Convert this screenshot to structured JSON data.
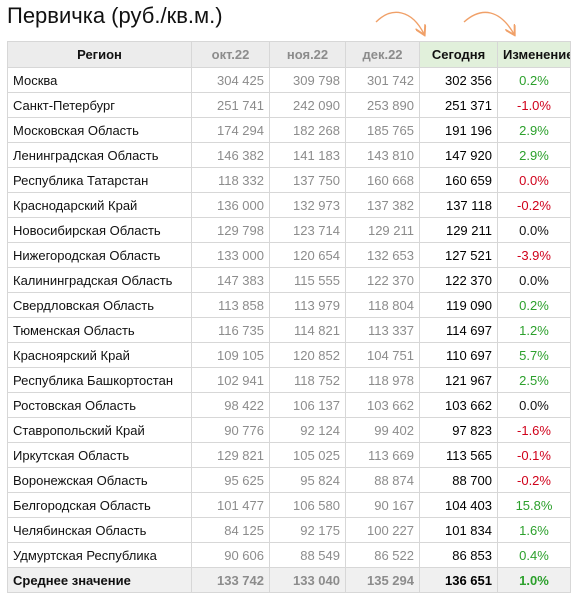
{
  "title": "Первичка (руб./кв.м.)",
  "colors": {
    "positive": "#2ca02c",
    "negative": "#d0021b",
    "neutral": "#111111",
    "header_bg": "#ececec",
    "today_header_bg": "#e1f0db",
    "arrow": "#f0a068"
  },
  "header": {
    "region": "Регион",
    "oct": "окт.22",
    "nov": "ноя.22",
    "dec": "дек.22",
    "today": "Сегодня",
    "change": "Изменение"
  },
  "rows": [
    {
      "region": "Москва",
      "oct": "304 425",
      "nov": "309 798",
      "dec": "301 742",
      "today": "302 356",
      "change": "0.2%",
      "sign": "pos"
    },
    {
      "region": "Санкт-Петербург",
      "oct": "251 741",
      "nov": "242 090",
      "dec": "253 890",
      "today": "251 371",
      "change": "-1.0%",
      "sign": "neg"
    },
    {
      "region": "Московская Область",
      "oct": "174 294",
      "nov": "182 268",
      "dec": "185 765",
      "today": "191 196",
      "change": "2.9%",
      "sign": "pos"
    },
    {
      "region": "Ленинградская Область",
      "oct": "146 382",
      "nov": "141 183",
      "dec": "143 810",
      "today": "147 920",
      "change": "2.9%",
      "sign": "pos"
    },
    {
      "region": "Республика Татарстан",
      "oct": "118 332",
      "nov": "137 750",
      "dec": "160 668",
      "today": "160 659",
      "change": "0.0%",
      "sign": "neg"
    },
    {
      "region": "Краснодарский Край",
      "oct": "136 000",
      "nov": "132 973",
      "dec": "137 382",
      "today": "137 118",
      "change": "-0.2%",
      "sign": "neg"
    },
    {
      "region": "Новосибирская Область",
      "oct": "129 798",
      "nov": "123 714",
      "dec": "129 211",
      "today": "129 211",
      "change": "0.0%",
      "sign": "zero"
    },
    {
      "region": "Нижегородская Область",
      "oct": "133 000",
      "nov": "120 654",
      "dec": "132 653",
      "today": "127 521",
      "change": "-3.9%",
      "sign": "neg"
    },
    {
      "region": "Калининградская Область",
      "oct": "147 383",
      "nov": "115 555",
      "dec": "122 370",
      "today": "122 370",
      "change": "0.0%",
      "sign": "zero"
    },
    {
      "region": "Свердловская Область",
      "oct": "113 858",
      "nov": "113 979",
      "dec": "118 804",
      "today": "119 090",
      "change": "0.2%",
      "sign": "pos"
    },
    {
      "region": "Тюменская Область",
      "oct": "116 735",
      "nov": "114 821",
      "dec": "113 337",
      "today": "114 697",
      "change": "1.2%",
      "sign": "pos"
    },
    {
      "region": "Красноярский Край",
      "oct": "109 105",
      "nov": "120 852",
      "dec": "104 751",
      "today": "110 697",
      "change": "5.7%",
      "sign": "pos"
    },
    {
      "region": "Республика Башкортостан",
      "oct": "102 941",
      "nov": "118 752",
      "dec": "118 978",
      "today": "121 967",
      "change": "2.5%",
      "sign": "pos"
    },
    {
      "region": "Ростовская Область",
      "oct": "98 422",
      "nov": "106 137",
      "dec": "103 662",
      "today": "103 662",
      "change": "0.0%",
      "sign": "zero"
    },
    {
      "region": "Ставропольский Край",
      "oct": "90 776",
      "nov": "92 124",
      "dec": "99 402",
      "today": "97 823",
      "change": "-1.6%",
      "sign": "neg"
    },
    {
      "region": "Иркутская Область",
      "oct": "129 821",
      "nov": "105 025",
      "dec": "113 669",
      "today": "113 565",
      "change": "-0.1%",
      "sign": "neg"
    },
    {
      "region": "Воронежская Область",
      "oct": "95 625",
      "nov": "95 824",
      "dec": "88 874",
      "today": "88 700",
      "change": "-0.2%",
      "sign": "neg"
    },
    {
      "region": "Белгородская Область",
      "oct": "101 477",
      "nov": "106 580",
      "dec": "90 167",
      "today": "104 403",
      "change": "15.8%",
      "sign": "pos"
    },
    {
      "region": "Челябинская Область",
      "oct": "84 125",
      "nov": "92 175",
      "dec": "100 227",
      "today": "101 834",
      "change": "1.6%",
      "sign": "pos"
    },
    {
      "region": "Удмуртская Республика",
      "oct": "90 606",
      "nov": "88 549",
      "dec": "86 522",
      "today": "86 853",
      "change": "0.4%",
      "sign": "pos"
    }
  ],
  "average": {
    "region": "Среднее значение",
    "oct": "133 742",
    "nov": "133 040",
    "dec": "135 294",
    "today": "136 651",
    "change": "1.0%",
    "sign": "pos"
  }
}
